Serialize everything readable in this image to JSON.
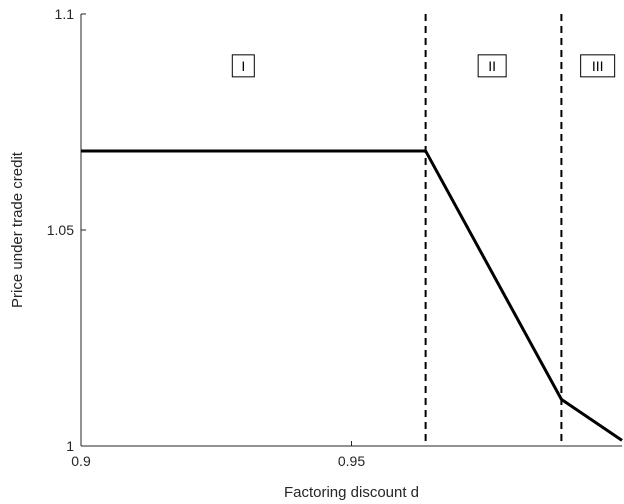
{
  "chart_data": {
    "type": "line",
    "title": "",
    "xlabel": "Factoring discount d",
    "ylabel": "Price under trade credit",
    "xlim": [
      0.9,
      1.0
    ],
    "ylim": [
      1.0,
      1.1
    ],
    "x_ticks": [
      0.9,
      0.95
    ],
    "x_tick_labels": [
      "0.9",
      "0.95"
    ],
    "y_ticks": [
      1.0,
      1.05,
      1.1
    ],
    "y_tick_labels": [
      "1",
      "1.05",
      "1.1"
    ],
    "grid": false,
    "series": [
      {
        "color": "#000000",
        "x": [
          0.9,
          0.9637,
          0.9888,
          1.0
        ],
        "y": [
          1.0683,
          1.0683,
          1.0108,
          1.0013
        ]
      }
    ],
    "vertical_lines": [
      {
        "x": 0.9637,
        "style": "dashed",
        "color": "#000000"
      },
      {
        "x": 0.9888,
        "style": "dashed",
        "color": "#000000"
      }
    ],
    "regions": [
      {
        "label": "I",
        "x": 0.93,
        "y": 1.088
      },
      {
        "label": "II",
        "x": 0.976,
        "y": 1.088
      },
      {
        "label": "III",
        "x": 0.9955,
        "y": 1.088
      }
    ]
  }
}
